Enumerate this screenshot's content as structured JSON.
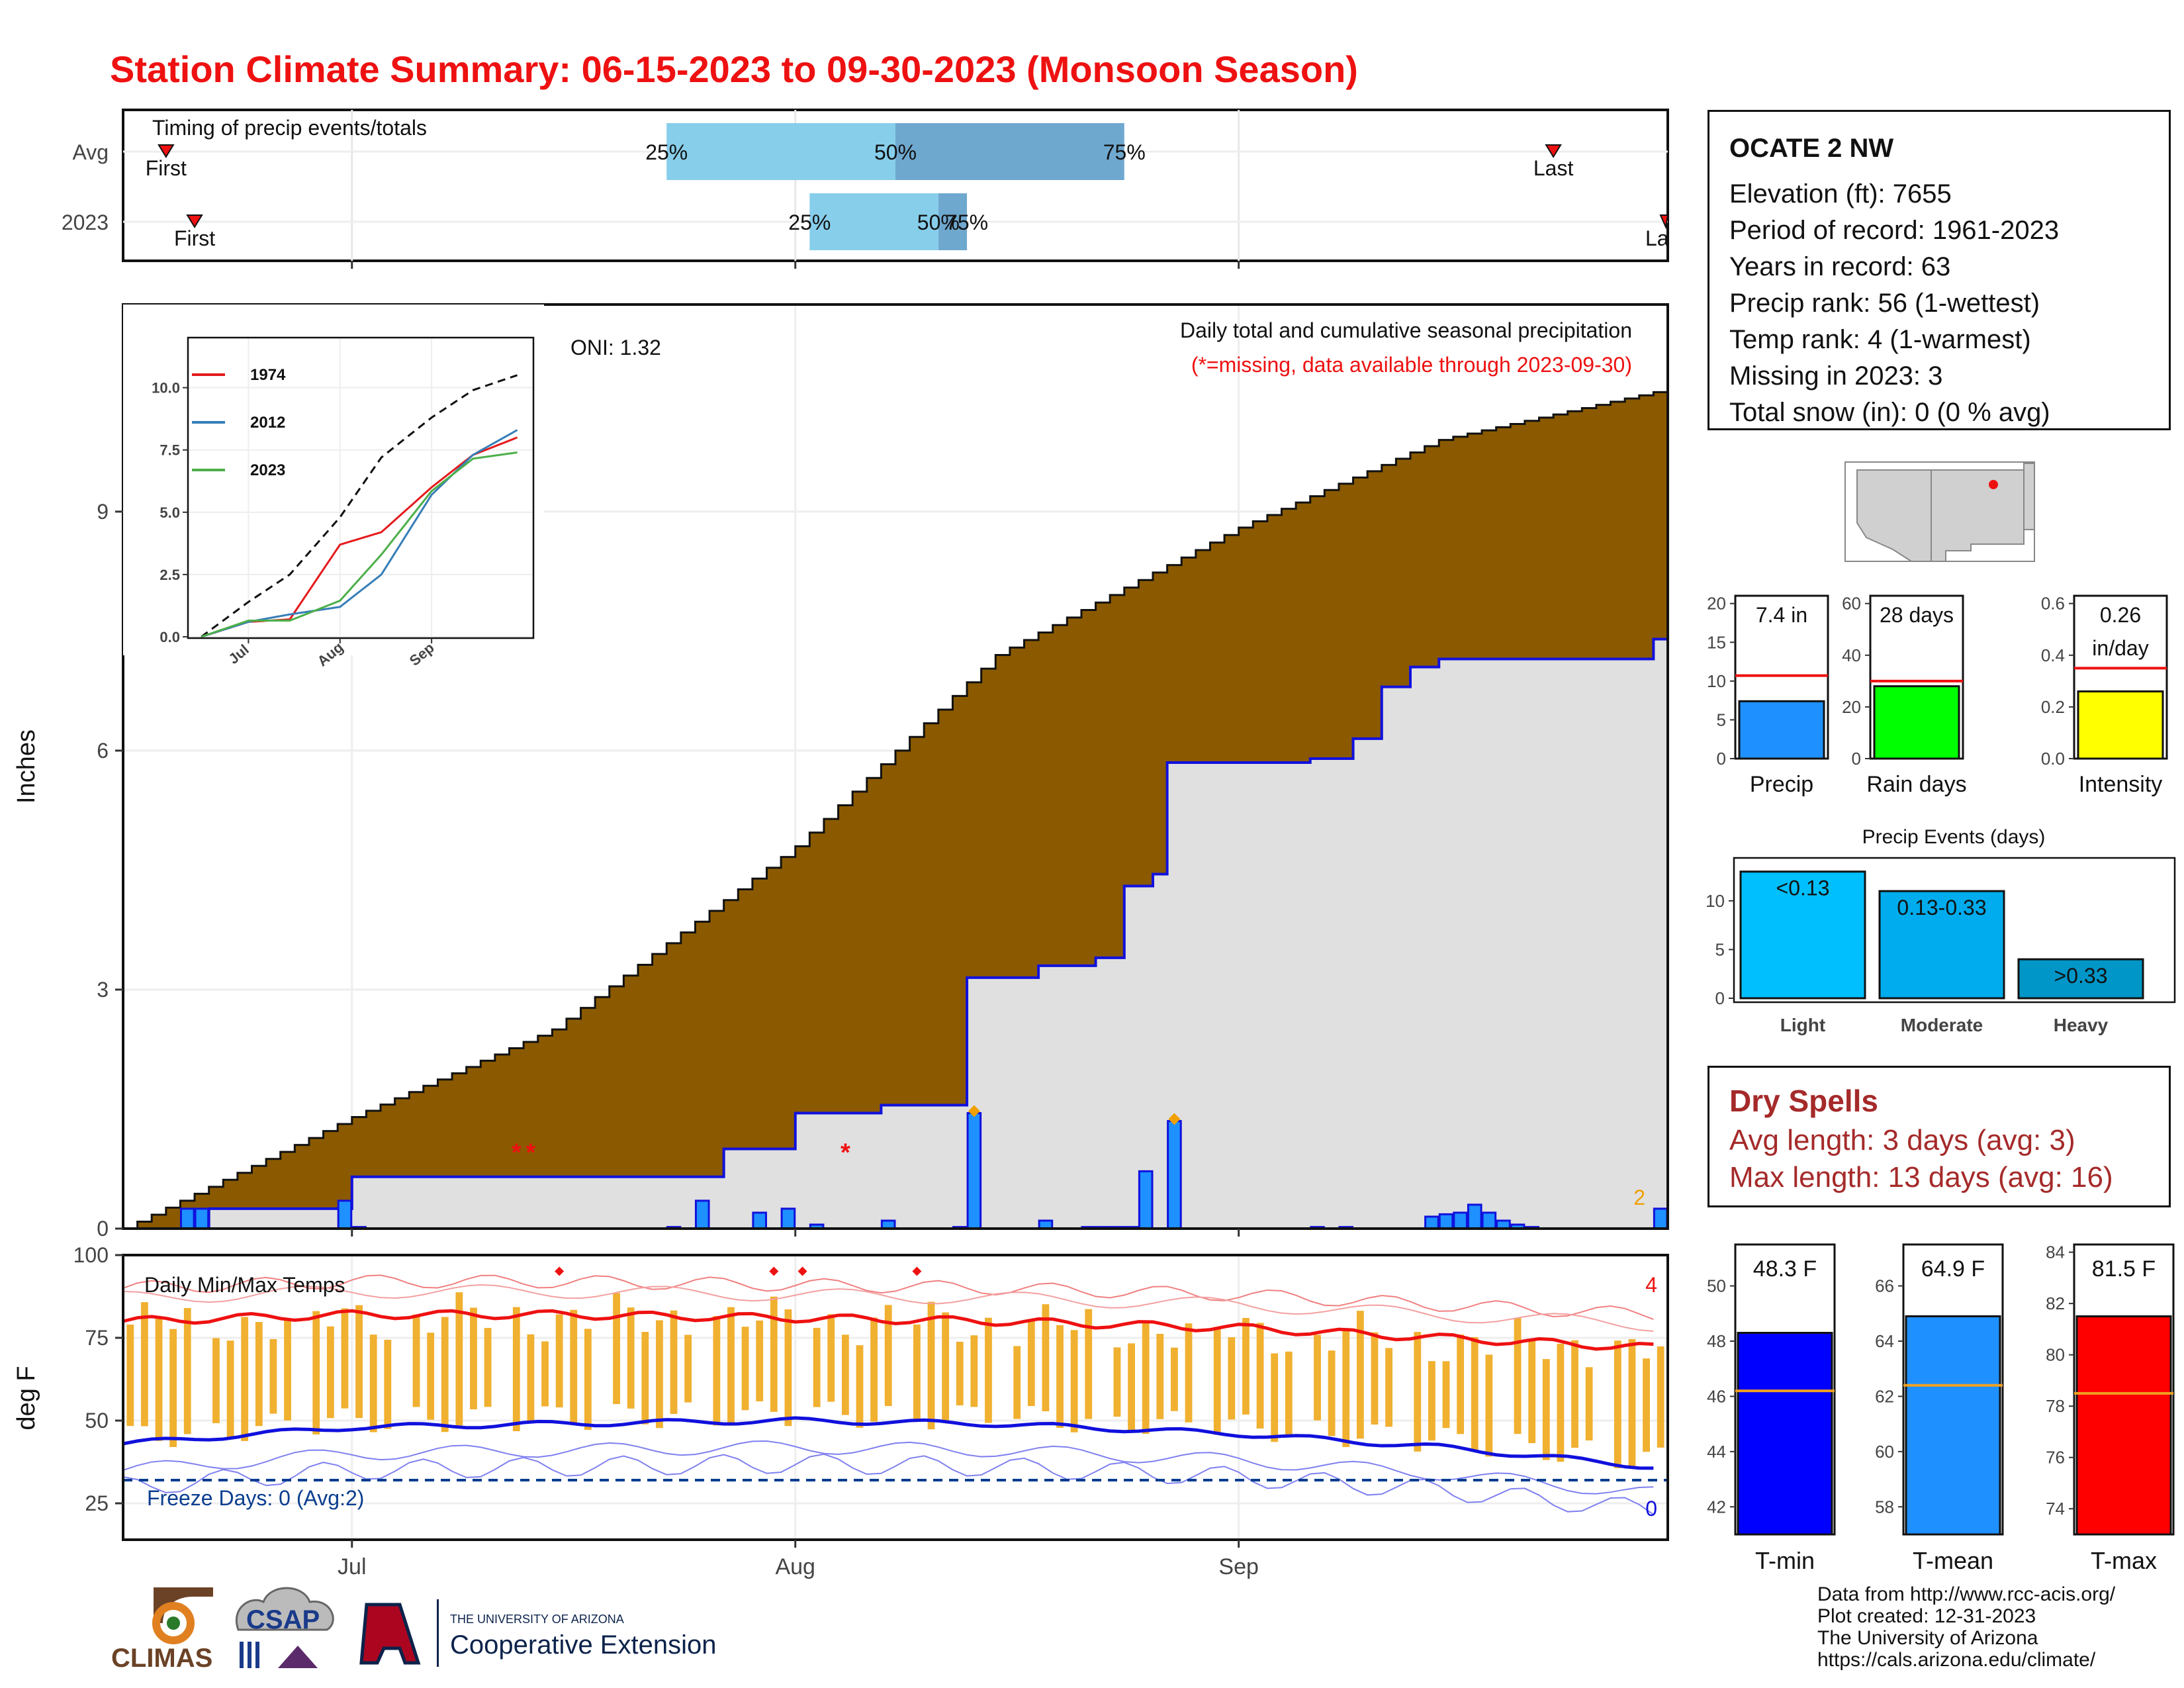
{
  "title": "Station Climate Summary: 06-15-2023 to 09-30-2023 (Monsoon Season)",
  "colors": {
    "title": "#ee1111",
    "cumulative_avg_fill": "#8b5a00",
    "cumulative_2023_fill": "#e0e0e0",
    "daily_bar": "#1e90ff",
    "temp_range_bar": "#f0b030",
    "tmax_line": "#ee1111",
    "tmin_line": "#1010dd"
  },
  "station": {
    "name": "OCATE 2 NW",
    "lines": [
      "Elevation (ft): 7655",
      "Period of record: 1961-2023",
      "Years in record: 63",
      "Precip rank: 56 (1-wettest)",
      "Temp rank: 4 (1-warmest)",
      "Missing in 2023: 3",
      "Total snow (in): 0 (0 % avg)"
    ]
  },
  "timing_panel": {
    "title": "Timing of precip events/totals",
    "rows": [
      "Avg",
      "2023"
    ],
    "markers": {
      "first": "First",
      "last": "Last",
      "last_clipped": "La"
    },
    "pct": {
      "p25": "25%",
      "p50": "50%",
      "p75": "75%"
    },
    "avg": {
      "first": "06-18",
      "p25": "07-23",
      "p50": "08-08",
      "p75": "08-24",
      "last": "09-23"
    },
    "y2023": {
      "first": "06-20",
      "p25": "08-02",
      "p50": "08-11",
      "p75": "08-13",
      "last": "10-01"
    }
  },
  "main_panel": {
    "ylabel": "Inches",
    "oni": "ONI: 1.32",
    "header": "Daily total and cumulative seasonal precipitation",
    "note": "(*=missing, data available through 2023-09-30)",
    "corner_count": "2",
    "yticks": [
      "0",
      "3",
      "6",
      "9"
    ],
    "xticks": [
      "Jul",
      "Aug",
      "Sep"
    ],
    "missing_marker": "*",
    "missing_days": [
      "07-12",
      "07-13",
      "08-04"
    ]
  },
  "inset": {
    "yticks": [
      "0.0",
      "2.5",
      "5.0",
      "7.5",
      "10.0"
    ],
    "xticks": [
      "Jul",
      "Aug",
      "Sep"
    ],
    "legend": [
      {
        "label": "1974",
        "color": "#e41a1c"
      },
      {
        "label": "2012",
        "color": "#377eb8"
      },
      {
        "label": "2023",
        "color": "#4daf4a"
      }
    ]
  },
  "temp_panel": {
    "ylabel": "deg F",
    "label": "Daily Min/Max Temps",
    "freeze": "Freeze Days: 0 (Avg:2)",
    "count_hot": "4",
    "count_cold": "0",
    "yticks": [
      "25",
      "50",
      "75",
      "100"
    ],
    "xticks": [
      "Jul",
      "Aug",
      "Sep"
    ]
  },
  "mini_bars": {
    "precip": {
      "label": "Precip",
      "value_text": "7.4 in",
      "yticks": [
        "0",
        "5",
        "10",
        "15",
        "20"
      ]
    },
    "raindays": {
      "label": "Rain days",
      "value_text": "28 days",
      "yticks": [
        "0",
        "20",
        "40",
        "60"
      ]
    },
    "intensity": {
      "label": "Intensity",
      "value_text": [
        "0.26",
        "in/day"
      ],
      "yticks": [
        "0.0",
        "0.2",
        "0.4",
        "0.6"
      ]
    }
  },
  "events": {
    "title": "Precip Events (days)",
    "yticks": [
      "0",
      "5",
      "10"
    ],
    "categories": [
      "Light",
      "Moderate",
      "Heavy"
    ],
    "labels": [
      "<0.13",
      "0.13-0.33",
      ">0.33"
    ],
    "values": [
      13,
      11,
      4
    ]
  },
  "dry_spells": {
    "title": "Dry Spells",
    "avg_line": "Avg length: 3 days (avg: 3)",
    "max_line": "Max length: 13 days (avg: 16)"
  },
  "temp_bars": {
    "tmin": {
      "label": "T-min",
      "value_text": "48.3 F",
      "yticks": [
        "42",
        "44",
        "46",
        "48",
        "50"
      ]
    },
    "tmean": {
      "label": "T-mean",
      "value_text": "64.9 F",
      "yticks": [
        "58",
        "60",
        "62",
        "64",
        "66"
      ]
    },
    "tmax": {
      "label": "T-max",
      "value_text": "81.5 F",
      "yticks": [
        "74",
        "76",
        "78",
        "80",
        "82",
        "84"
      ]
    }
  },
  "credits": [
    "Data from http://www.rcc-acis.org/",
    "Plot created: 12-31-2023",
    "The University of Arizona",
    "https://cals.arizona.edu/climate/"
  ],
  "logos": {
    "climas": "CLIMAS",
    "csap": "CSAP",
    "ua_small": "THE UNIVERSITY OF ARIZONA",
    "ua_big": "Cooperative Extension"
  },
  "chart_data": [
    {
      "type": "area",
      "title": "Daily total and cumulative seasonal precipitation",
      "ylabel": "Inches",
      "ylim": [
        0,
        11.6
      ],
      "x_range": [
        "06-15",
        "09-30"
      ],
      "series": [
        {
          "name": "",
          "x": [
            "06-15",
            "07-01",
            "07-15",
            "08-01",
            "08-15",
            "09-01",
            "09-15",
            "09-30"
          ],
          "values": [
            0.0,
            1.4,
            2.5,
            4.8,
            7.2,
            8.8,
            9.9,
            10.5
          ]
        },
        {
          "name": "2023",
          "x": [
            "06-15",
            "06-20",
            "06-21",
            "06-30",
            "07-01",
            "07-25",
            "07-27",
            "08-01",
            "08-07",
            "08-12",
            "08-13",
            "08-18",
            "08-22",
            "08-24",
            "08-26",
            "08-27",
            "09-06",
            "09-09",
            "09-11",
            "09-13",
            "09-15",
            "09-30"
          ],
          "values": [
            0.0,
            0.0,
            0.25,
            0.25,
            0.65,
            0.65,
            1.0,
            1.45,
            1.55,
            1.55,
            3.15,
            3.3,
            3.4,
            4.3,
            4.45,
            5.85,
            5.9,
            6.15,
            6.8,
            7.05,
            7.15,
            7.4
          ]
        }
      ]
    },
    {
      "type": "bar",
      "title": "",
      "ylabel": "Inches",
      "x": [
        "06-19",
        "06-20",
        "06-30",
        "07-01",
        "07-23",
        "07-25",
        "07-29",
        "07-31",
        "08-02",
        "08-07",
        "08-12",
        "08-13",
        "08-18",
        "08-21",
        "08-22",
        "08-23",
        "08-24",
        "08-25",
        "08-27",
        "09-06",
        "09-08",
        "09-14",
        "09-15",
        "09-16",
        "09-17",
        "09-18",
        "09-19",
        "09-20",
        "09-21",
        "09-30"
      ],
      "values": [
        0.25,
        0.25,
        0.35,
        0.02,
        0.02,
        0.35,
        0.2,
        0.25,
        0.05,
        0.1,
        0.02,
        1.45,
        0.1,
        0.02,
        0.02,
        0.02,
        0.02,
        0.72,
        1.35,
        0.02,
        0.02,
        0.15,
        0.18,
        0.2,
        0.3,
        0.2,
        0.1,
        0.05,
        0.02,
        0.25
      ]
    },
    {
      "type": "line",
      "title": "",
      "ylim": [
        0,
        11
      ],
      "x": [
        "06-15",
        "07-01",
        "07-15",
        "08-01",
        "08-15",
        "09-01",
        "09-15",
        "09-30"
      ],
      "series": [
        {
          "name": "",
          "values": [
            0.0,
            1.4,
            2.5,
            4.8,
            7.2,
            8.8,
            9.9,
            10.5
          ]
        },
        {
          "name": "1974",
          "values": [
            0.0,
            0.6,
            0.7,
            3.7,
            4.2,
            6.0,
            7.3,
            8.0
          ]
        },
        {
          "name": "2012",
          "values": [
            0.0,
            0.6,
            0.9,
            1.2,
            2.5,
            5.7,
            7.3,
            8.3
          ]
        },
        {
          "name": "2023",
          "values": [
            0.0,
            0.65,
            0.65,
            1.45,
            3.3,
            5.85,
            7.15,
            7.4
          ]
        }
      ]
    },
    {
      "type": "bar",
      "title": "Daily Min/Max Temps",
      "ylabel": "deg F",
      "ylim": [
        14,
        100
      ],
      "x_range": [
        "06-15",
        "09-30"
      ],
      "series": [
        {
          "name": "",
          "x": [
            "06-15",
            "07-01",
            "07-15",
            "08-01",
            "08-15",
            "09-01",
            "09-15",
            "09-30"
          ],
          "values": [
            80,
            82,
            82,
            81,
            80,
            78,
            75,
            72
          ]
        },
        {
          "name": "",
          "x": [
            "06-15",
            "07-01",
            "07-15",
            "08-01",
            "08-15",
            "09-01",
            "09-15",
            "09-30"
          ],
          "values": [
            43,
            48,
            49,
            50,
            49,
            46,
            42,
            36
          ]
        },
        {
          "name": "",
          "values": [
            32
          ]
        }
      ]
    },
    {
      "type": "bar",
      "title": "Precip Events (days)",
      "categories": [
        "Light",
        "Moderate",
        "Heavy"
      ],
      "values": [
        13,
        11,
        4
      ],
      "ylim": [
        0,
        14
      ]
    },
    {
      "type": "bar",
      "title": "",
      "categories": [
        "Precip",
        "Rain days",
        "Intensity"
      ],
      "series": [
        {
          "name": "",
          "values": [
            7.4,
            28,
            0.26
          ]
        },
        {
          "name": "",
          "values": [
            10.7,
            30,
            0.35
          ]
        }
      ]
    },
    {
      "type": "bar",
      "title": "",
      "categories": [
        "T-min",
        "T-mean",
        "T-max"
      ],
      "series": [
        {
          "name": "",
          "values": [
            48.3,
            64.9,
            81.5
          ]
        },
        {
          "name": "",
          "values": [
            46.2,
            62.4,
            78.5
          ]
        }
      ]
    }
  ]
}
